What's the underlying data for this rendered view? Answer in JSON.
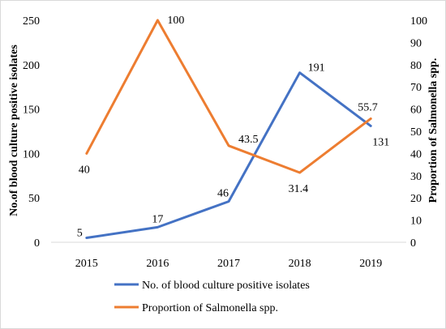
{
  "chart_data": {
    "type": "line",
    "categories": [
      "2015",
      "2016",
      "2017",
      "2018",
      "2019"
    ],
    "series": [
      {
        "name": "No. of blood culture positive isolates",
        "axis": "left",
        "color": "#4472C4",
        "values": [
          5,
          17,
          46,
          191,
          131
        ],
        "labels": [
          "5",
          "17",
          "46",
          "191",
          "131"
        ]
      },
      {
        "name": "Proportion of Salmonella spp.",
        "axis": "right",
        "color": "#ED7D31",
        "values": [
          40,
          100,
          43.5,
          31.4,
          55.7
        ],
        "labels": [
          "40",
          "100",
          "43.5",
          "31.4",
          "55.7"
        ]
      }
    ],
    "ylabel_left": "No.of blood culture positive isolates",
    "ylabel_right": "Proportion of Salmonella spp.",
    "ylim_left": [
      0,
      250
    ],
    "yticks_left": [
      "0",
      "50",
      "100",
      "150",
      "200",
      "250"
    ],
    "ylim_right": [
      0,
      100
    ],
    "yticks_right": [
      "0",
      "10",
      "20",
      "30",
      "40",
      "50",
      "60",
      "70",
      "80",
      "90",
      "100"
    ],
    "grid": false,
    "legend_position": "bottom"
  }
}
